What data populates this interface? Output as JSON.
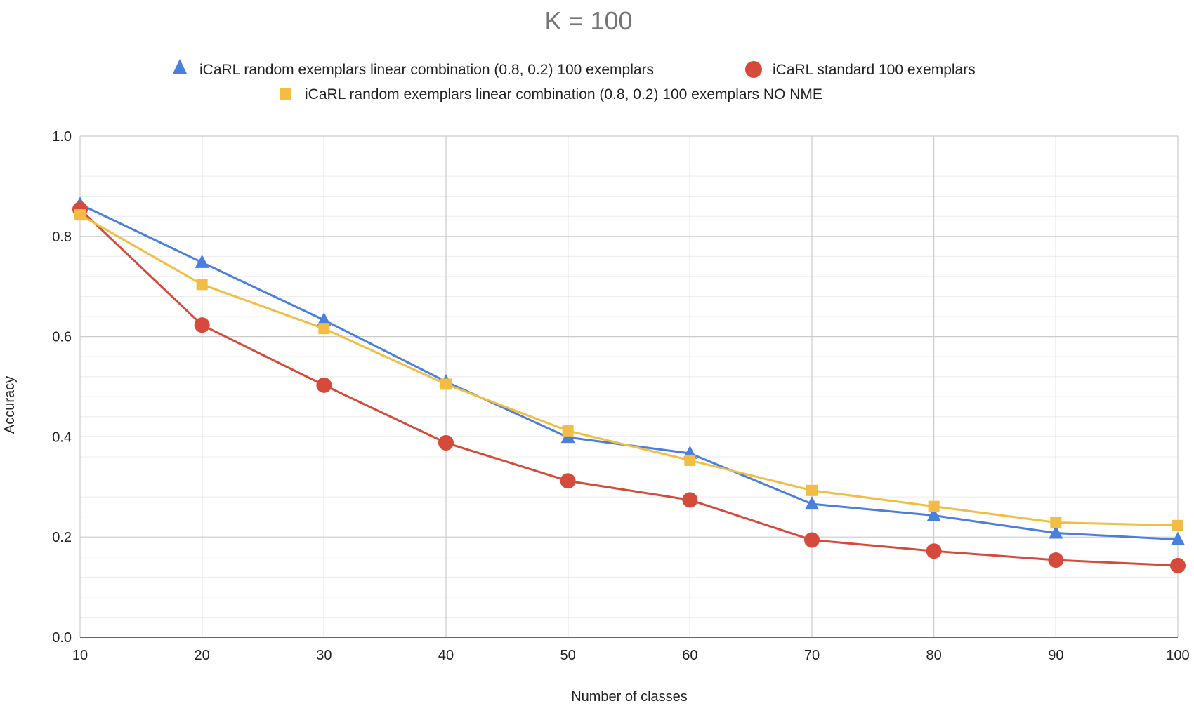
{
  "chart_data": {
    "type": "line",
    "title": "K = 100",
    "xlabel": "Number of classes",
    "ylabel": "Accuracy",
    "x": [
      10,
      20,
      30,
      40,
      50,
      60,
      70,
      80,
      90,
      100
    ],
    "x_ticks": [
      "10",
      "20",
      "30",
      "40",
      "50",
      "60",
      "70",
      "80",
      "90",
      "100"
    ],
    "xlim": [
      10,
      100
    ],
    "ylim": [
      0,
      1
    ],
    "y_ticks": [
      "0.0",
      "0.2",
      "0.4",
      "0.6",
      "0.8",
      "1.0"
    ],
    "y_tick_values": [
      0,
      0.2,
      0.4,
      0.6,
      0.8,
      1.0
    ],
    "y_minor_step": 0.04,
    "grid": true,
    "legend_position": "top",
    "series": [
      {
        "name": "iCaRL random exemplars linear combination (0.8, 0.2) 100 exemplars",
        "marker": "triangle",
        "color": "#4a7fdc",
        "values": [
          0.864,
          0.748,
          0.633,
          0.51,
          0.399,
          0.367,
          0.266,
          0.243,
          0.208,
          0.195
        ]
      },
      {
        "name": "iCaRL standard 100 exemplars",
        "marker": "circle",
        "color": "#d54a3a",
        "values": [
          0.854,
          0.623,
          0.503,
          0.388,
          0.312,
          0.274,
          0.194,
          0.172,
          0.154,
          0.143
        ]
      },
      {
        "name": "iCaRL random exemplars linear combination (0.8, 0.2) 100 exemplars NO NME",
        "marker": "square",
        "color": "#f2bd42",
        "values": [
          0.843,
          0.704,
          0.616,
          0.505,
          0.412,
          0.353,
          0.293,
          0.261,
          0.229,
          0.223
        ]
      }
    ]
  }
}
